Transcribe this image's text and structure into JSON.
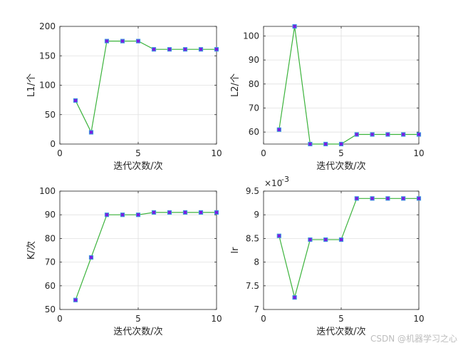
{
  "colors": {
    "line": "#3cb33c",
    "marker_face": "#7a1fe0",
    "marker_edge": "#3c9de0",
    "axis": "#262626",
    "grid": "#e0e0e0"
  },
  "watermark": "CSDN @机器学习之心",
  "chart_data": [
    {
      "type": "line",
      "x": [
        1,
        2,
        3,
        4,
        5,
        6,
        7,
        8,
        9,
        10
      ],
      "series": [
        {
          "values": [
            74,
            20,
            175,
            175,
            175,
            161,
            161,
            161,
            161,
            161
          ]
        }
      ],
      "xlabel": "迭代次数/次",
      "ylabel": "L1/个",
      "xlim": [
        0,
        10
      ],
      "ylim": [
        0,
        200
      ],
      "xticks": [
        "0",
        "5",
        "10"
      ],
      "yticks": [
        "0",
        "50",
        "100",
        "150",
        "200"
      ],
      "grid": true
    },
    {
      "type": "line",
      "x": [
        1,
        2,
        3,
        4,
        5,
        6,
        7,
        8,
        9,
        10
      ],
      "series": [
        {
          "values": [
            61,
            104,
            55,
            55,
            55,
            59,
            59,
            59,
            59,
            59
          ]
        }
      ],
      "xlabel": "迭代次数/次",
      "ylabel": "L2/个",
      "xlim": [
        0,
        10
      ],
      "ylim": [
        55,
        104
      ],
      "xticks": [
        "0",
        "5",
        "10"
      ],
      "yticks": [
        "60",
        "70",
        "80",
        "90",
        "100"
      ],
      "grid": true
    },
    {
      "type": "line",
      "x": [
        1,
        2,
        3,
        4,
        5,
        6,
        7,
        8,
        9,
        10
      ],
      "series": [
        {
          "values": [
            54,
            72,
            90,
            90,
            90,
            91,
            91,
            91,
            91,
            91
          ]
        }
      ],
      "xlabel": "迭代次数/次",
      "ylabel": "K/次",
      "xlim": [
        0,
        10
      ],
      "ylim": [
        50,
        100
      ],
      "xticks": [
        "0",
        "5",
        "10"
      ],
      "yticks": [
        "50",
        "60",
        "70",
        "80",
        "90",
        "100"
      ],
      "grid": true
    },
    {
      "type": "line",
      "x": [
        1,
        2,
        3,
        4,
        5,
        6,
        7,
        8,
        9,
        10
      ],
      "series": [
        {
          "values": [
            0.008555,
            0.007255,
            0.008475,
            0.008475,
            0.008475,
            0.009345,
            0.009345,
            0.009345,
            0.009345,
            0.009345
          ]
        }
      ],
      "xlabel": "迭代次数/次",
      "ylabel": "lr",
      "xlim": [
        0,
        10
      ],
      "ylim": [
        0.007,
        0.0095
      ],
      "xticks": [
        "0",
        "5",
        "10"
      ],
      "yticks": [
        "7",
        "7.5",
        "8",
        "8.5",
        "9",
        "9.5"
      ],
      "axis_multiplier_base": "×10",
      "axis_multiplier_exp": "-3",
      "grid": true
    }
  ]
}
